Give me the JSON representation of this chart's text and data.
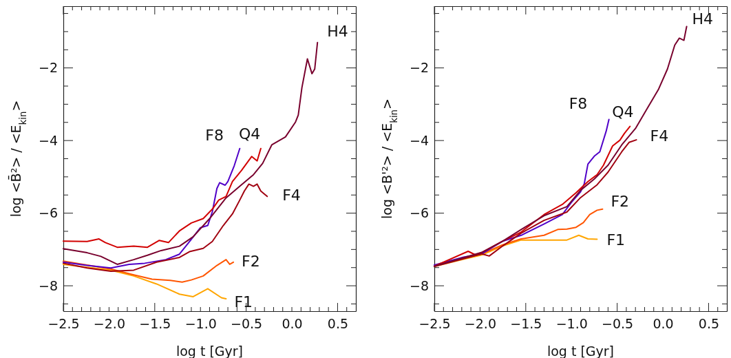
{
  "chart_data": [
    {
      "type": "line",
      "xlabel": "log t [Gyr]",
      "ylabel": "log  <B̄²> / <E$_{kin}$>",
      "xlim": [
        -2.5,
        0.7
      ],
      "ylim": [
        -8.7,
        -0.3
      ],
      "xticks": [
        -2.5,
        {
          "value": -2.4,
          "label": null
        },
        {
          "value": -2.3,
          "label": null
        },
        {
          "value": -2.2,
          "label": null
        },
        {
          "value": -2.1,
          "label": null
        },
        {
          "value": -2.0,
          "label": "−2.0"
        },
        {
          "value": -1.9,
          "label": null
        },
        {
          "value": -1.8,
          "label": null
        },
        {
          "value": -1.7,
          "label": null
        },
        {
          "value": -1.6,
          "label": null
        },
        -1.5,
        {
          "value": -1.4,
          "label": null
        },
        {
          "value": -1.3,
          "label": null
        },
        {
          "value": -1.2,
          "label": null
        },
        {
          "value": -1.1,
          "label": null
        },
        {
          "value": -1.0,
          "label": "−1.0"
        },
        {
          "value": -0.9,
          "label": null
        },
        {
          "value": -0.8,
          "label": null
        },
        {
          "value": -0.7,
          "label": null
        },
        {
          "value": -0.6,
          "label": null
        },
        -0.5,
        {
          "value": -0.4,
          "label": null
        },
        {
          "value": -0.3,
          "label": null
        },
        {
          "value": -0.2,
          "label": null
        },
        {
          "value": -0.1,
          "label": null
        },
        {
          "value": 0.0,
          "label": "0.0"
        },
        {
          "value": 0.1,
          "label": null
        },
        {
          "value": 0.2,
          "label": null
        },
        {
          "value": 0.3,
          "label": null
        },
        {
          "value": 0.4,
          "label": null
        },
        0.5,
        {
          "value": 0.6,
          "label": null
        }
      ],
      "yticks": [
        {
          "value": -8.5,
          "label": null
        },
        -8,
        {
          "value": -7.5,
          "label": null
        },
        {
          "value": -7,
          "label": null
        },
        {
          "value": -6.5,
          "label": null
        },
        -6,
        {
          "value": -5.5,
          "label": null
        },
        {
          "value": -5,
          "label": null
        },
        {
          "value": -4.5,
          "label": null
        },
        -4,
        {
          "value": -3.5,
          "label": null
        },
        {
          "value": -3,
          "label": null
        },
        {
          "value": -2.5,
          "label": null
        },
        -2,
        {
          "value": -1.5,
          "label": null
        },
        {
          "value": -1,
          "label": null
        },
        {
          "value": -0.5,
          "label": null
        }
      ],
      "grid": false,
      "legend": false,
      "series": [
        {
          "name": "F1",
          "color": "#ffa500",
          "x": [
            -2.5,
            -1.98,
            -1.73,
            -1.48,
            -1.23,
            -1.08,
            -0.92,
            -0.77,
            -0.72
          ],
          "values": [
            -7.41,
            -7.57,
            -7.73,
            -7.95,
            -8.23,
            -8.3,
            -8.08,
            -8.33,
            -8.36
          ]
        },
        {
          "name": "F2",
          "color": "#ff5500",
          "x": [
            -2.5,
            -1.98,
            -1.73,
            -1.53,
            -1.33,
            -1.2,
            -1.1,
            -0.97,
            -0.82,
            -0.72,
            -0.68,
            -0.64
          ],
          "values": [
            -7.32,
            -7.54,
            -7.7,
            -7.82,
            -7.85,
            -7.9,
            -7.84,
            -7.73,
            -7.44,
            -7.28,
            -7.41,
            -7.35
          ]
        },
        {
          "name": "F8",
          "color": "#5000c8",
          "x": [
            -2.5,
            -2.24,
            -1.98,
            -1.78,
            -1.61,
            -1.38,
            -1.23,
            -1.1,
            -1.0,
            -0.92,
            -0.87,
            -0.82,
            -0.79,
            -0.73,
            -0.7,
            -0.63,
            -0.57
          ],
          "values": [
            -7.35,
            -7.44,
            -7.51,
            -7.41,
            -7.38,
            -7.28,
            -7.13,
            -6.72,
            -6.4,
            -6.34,
            -5.96,
            -5.32,
            -5.16,
            -5.23,
            -5.13,
            -4.69,
            -4.22
          ]
        },
        {
          "name": "Q4",
          "color": "#d20000",
          "x": [
            -2.5,
            -2.24,
            -2.11,
            -2.04,
            -1.91,
            -1.73,
            -1.58,
            -1.45,
            -1.35,
            -1.23,
            -1.1,
            -0.97,
            -0.87,
            -0.8,
            -0.72,
            -0.65,
            -0.55,
            -0.44,
            -0.38,
            -0.34
          ],
          "values": [
            -6.77,
            -6.78,
            -6.71,
            -6.81,
            -6.94,
            -6.91,
            -6.94,
            -6.75,
            -6.81,
            -6.49,
            -6.27,
            -6.15,
            -5.89,
            -5.64,
            -5.54,
            -5.13,
            -4.82,
            -4.44,
            -4.56,
            -4.22
          ]
        },
        {
          "name": "F4",
          "color": "#a00010",
          "x": [
            -2.5,
            -2.24,
            -1.98,
            -1.73,
            -1.48,
            -1.23,
            -1.12,
            -0.97,
            -0.87,
            -0.75,
            -0.65,
            -0.57,
            -0.52,
            -0.47,
            -0.42,
            -0.38,
            -0.34,
            -0.27
          ],
          "values": [
            -7.38,
            -7.51,
            -7.6,
            -7.57,
            -7.35,
            -7.22,
            -7.06,
            -6.97,
            -6.78,
            -6.34,
            -6.02,
            -5.64,
            -5.39,
            -5.2,
            -5.26,
            -5.2,
            -5.39,
            -5.54
          ]
        },
        {
          "name": "H4",
          "color": "#78002d",
          "x": [
            -2.5,
            -2.24,
            -2.09,
            -1.91,
            -1.73,
            -1.58,
            -1.43,
            -1.23,
            -1.08,
            -0.9,
            -0.72,
            -0.57,
            -0.42,
            -0.32,
            -0.22,
            -0.07,
            0.04,
            0.07,
            0.11,
            0.17,
            0.22,
            0.25,
            0.28
          ],
          "values": [
            -6.98,
            -7.09,
            -7.19,
            -7.41,
            -7.28,
            -7.16,
            -7.03,
            -6.91,
            -6.65,
            -6.15,
            -5.58,
            -5.26,
            -4.94,
            -4.63,
            -4.12,
            -3.9,
            -3.49,
            -3.3,
            -2.54,
            -1.75,
            -2.16,
            -2.03,
            -1.3
          ]
        }
      ]
    },
    {
      "type": "line",
      "xlabel": "log t [Gyr]",
      "ylabel": "log  <B'²> / <E$_{kin}$>",
      "xlim": [
        -2.5,
        0.7
      ],
      "ylim": [
        -8.7,
        -0.3
      ],
      "xticks": [
        -2.5,
        {
          "value": -2.4,
          "label": null
        },
        {
          "value": -2.3,
          "label": null
        },
        {
          "value": -2.2,
          "label": null
        },
        {
          "value": -2.1,
          "label": null
        },
        {
          "value": -2.0,
          "label": "−2.0"
        },
        {
          "value": -1.9,
          "label": null
        },
        {
          "value": -1.8,
          "label": null
        },
        {
          "value": -1.7,
          "label": null
        },
        {
          "value": -1.6,
          "label": null
        },
        -1.5,
        {
          "value": -1.4,
          "label": null
        },
        {
          "value": -1.3,
          "label": null
        },
        {
          "value": -1.2,
          "label": null
        },
        {
          "value": -1.1,
          "label": null
        },
        {
          "value": -1.0,
          "label": "−1.0"
        },
        {
          "value": -0.9,
          "label": null
        },
        {
          "value": -0.8,
          "label": null
        },
        {
          "value": -0.7,
          "label": null
        },
        {
          "value": -0.6,
          "label": null
        },
        -0.5,
        {
          "value": -0.4,
          "label": null
        },
        {
          "value": -0.3,
          "label": null
        },
        {
          "value": -0.2,
          "label": null
        },
        {
          "value": -0.1,
          "label": null
        },
        {
          "value": 0.0,
          "label": "0.0"
        },
        {
          "value": 0.1,
          "label": null
        },
        {
          "value": 0.2,
          "label": null
        },
        {
          "value": 0.3,
          "label": null
        },
        {
          "value": 0.4,
          "label": null
        },
        0.5,
        {
          "value": 0.6,
          "label": null
        }
      ],
      "yticks": [
        {
          "value": -8.5,
          "label": null
        },
        -8,
        {
          "value": -7.5,
          "label": null
        },
        {
          "value": -7,
          "label": null
        },
        {
          "value": -6.5,
          "label": null
        },
        -6,
        {
          "value": -5.5,
          "label": null
        },
        {
          "value": -5,
          "label": null
        },
        {
          "value": -4.5,
          "label": null
        },
        -4,
        {
          "value": -3.5,
          "label": null
        },
        {
          "value": -3,
          "label": null
        },
        {
          "value": -2.5,
          "label": null
        },
        -2,
        {
          "value": -1.5,
          "label": null
        },
        {
          "value": -1,
          "label": null
        },
        {
          "value": -0.5,
          "label": null
        }
      ],
      "grid": false,
      "legend": false,
      "series": [
        {
          "name": "F1",
          "color": "#ffa500",
          "x": [
            -2.5,
            -2.18,
            -1.98,
            -1.75,
            -1.55,
            -1.3,
            -1.05,
            -0.92,
            -0.82,
            -0.72
          ],
          "values": [
            -7.47,
            -7.27,
            -7.15,
            -6.9,
            -6.74,
            -6.74,
            -6.74,
            -6.61,
            -6.71,
            -6.72
          ]
        },
        {
          "name": "F2",
          "color": "#ff5500",
          "x": [
            -2.5,
            -2.18,
            -1.98,
            -1.75,
            -1.55,
            -1.3,
            -1.15,
            -1.05,
            -0.95,
            -0.87,
            -0.8,
            -0.72,
            -0.66
          ],
          "values": [
            -7.46,
            -7.24,
            -7.12,
            -6.87,
            -6.71,
            -6.61,
            -6.45,
            -6.44,
            -6.39,
            -6.26,
            -6.04,
            -5.92,
            -5.89
          ]
        },
        {
          "name": "F8",
          "color": "#5000c8",
          "x": [
            -2.5,
            -2.18,
            -1.98,
            -1.75,
            -1.55,
            -1.3,
            -1.1,
            -1.0,
            -0.9,
            -0.86,
            -0.82,
            -0.75,
            -0.69,
            -0.62,
            -0.59
          ],
          "values": [
            -7.43,
            -7.21,
            -7.12,
            -6.77,
            -6.61,
            -6.3,
            -6.04,
            -5.7,
            -5.41,
            -5.19,
            -4.65,
            -4.43,
            -4.31,
            -3.74,
            -3.42
          ]
        },
        {
          "name": "Q4",
          "color": "#d20000",
          "x": [
            -2.5,
            -2.13,
            -2.05,
            -1.98,
            -1.75,
            -1.55,
            -1.3,
            -1.1,
            -0.95,
            -0.82,
            -0.72,
            -0.65,
            -0.55,
            -0.47,
            -0.42,
            -0.36
          ],
          "values": [
            -7.46,
            -7.05,
            -7.15,
            -7.08,
            -6.77,
            -6.52,
            -6.04,
            -5.76,
            -5.44,
            -5.13,
            -4.94,
            -4.68,
            -4.15,
            -3.99,
            -3.8,
            -3.61
          ]
        },
        {
          "name": "F4",
          "color": "#a00010",
          "x": [
            -2.5,
            -1.98,
            -1.9,
            -1.75,
            -1.55,
            -1.3,
            -1.05,
            -0.9,
            -0.72,
            -0.6,
            -0.45,
            -0.37,
            -0.29
          ],
          "values": [
            -7.47,
            -7.12,
            -7.18,
            -6.9,
            -6.55,
            -6.2,
            -5.97,
            -5.57,
            -5.22,
            -4.87,
            -4.31,
            -4.05,
            -3.98
          ]
        },
        {
          "name": "H4",
          "color": "#78002d",
          "x": [
            -2.5,
            -1.98,
            -1.75,
            -1.55,
            -1.3,
            -1.05,
            -0.9,
            -0.75,
            -0.6,
            -0.45,
            -0.3,
            -0.17,
            -0.05,
            0.05,
            0.13,
            0.18,
            0.23,
            0.26
          ],
          "values": [
            -7.46,
            -7.08,
            -6.77,
            -6.45,
            -6.07,
            -5.82,
            -5.37,
            -5.06,
            -4.68,
            -4.12,
            -3.67,
            -3.11,
            -2.6,
            -2.03,
            -1.37,
            -1.18,
            -1.24,
            -0.86
          ]
        }
      ]
    }
  ]
}
